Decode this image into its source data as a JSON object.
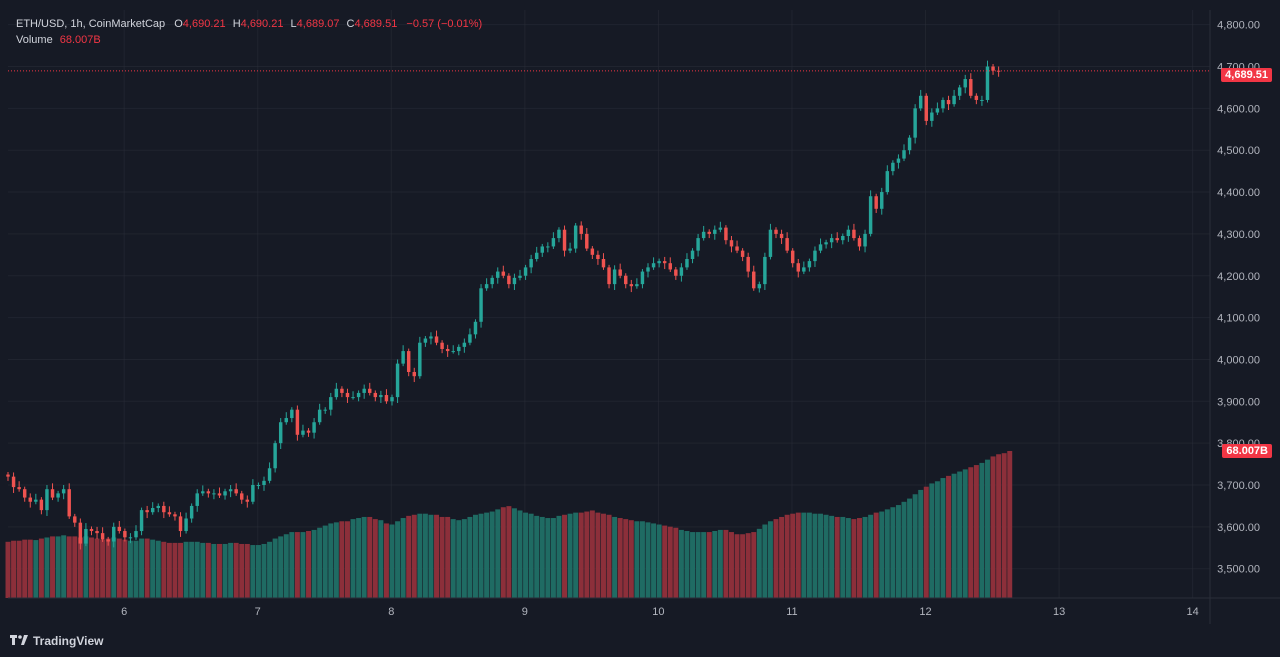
{
  "legend": {
    "symbol": "ETH/USD, 1h, CoinMarketCap",
    "open_label": "O",
    "open": "4,690.21",
    "high_label": "H",
    "high": "4,690.21",
    "low_label": "L",
    "low": "4,689.07",
    "close_label": "C",
    "close": "4,689.51",
    "change": "−0.57 (−0.01%)",
    "volume_label": "Volume",
    "volume": "68.007B"
  },
  "price_tag": "4,689.51",
  "volume_tag": "68.007B",
  "brand": "TradingView",
  "colors": {
    "up": "#26a69a",
    "down": "#ef5350",
    "up_vol": "#1f6b63",
    "down_vol": "#8c2f3a",
    "background": "#161a25",
    "grid": "#2a2e39",
    "text": "#b2b5be",
    "tag": "#f23645"
  },
  "chart_data": {
    "type": "candlestick",
    "title": "ETH/USD, 1h, CoinMarketCap",
    "y_ticks": [
      "3,500.00",
      "3,600.00",
      "3,700.00",
      "3,800.00",
      "3,900.00",
      "4,000.00",
      "4,100.00",
      "4,200.00",
      "4,300.00",
      "4,400.00",
      "4,500.00",
      "4,600.00",
      "4,700.00",
      "4,800.00"
    ],
    "ylim": [
      3430,
      4835
    ],
    "x_ticks": [
      "6",
      "7",
      "8",
      "9",
      "10",
      "11",
      "12",
      "13",
      "14"
    ],
    "x_tick_days": [
      6,
      7,
      8,
      9,
      10,
      11,
      12,
      13,
      14
    ],
    "xlim": [
      5.13,
      14.13
    ],
    "last_price": 4689.51,
    "candle_start_day": 5.13,
    "candle_step_days": 0.04167,
    "series": [
      {
        "name": "ETH/USD",
        "close": [
          3720,
          3695,
          3690,
          3670,
          3660,
          3665,
          3640,
          3690,
          3670,
          3680,
          3690,
          3625,
          3610,
          3560,
          3595,
          3590,
          3585,
          3570,
          3565,
          3600,
          3590,
          3575,
          3575,
          3590,
          3640,
          3635,
          3645,
          3650,
          3635,
          3630,
          3625,
          3590,
          3620,
          3650,
          3680,
          3685,
          3680,
          3680,
          3675,
          3685,
          3690,
          3680,
          3665,
          3660,
          3700,
          3700,
          3710,
          3740,
          3800,
          3850,
          3860,
          3880,
          3820,
          3830,
          3825,
          3850,
          3880,
          3880,
          3910,
          3930,
          3920,
          3910,
          3910,
          3920,
          3930,
          3920,
          3910,
          3915,
          3900,
          3910,
          3990,
          4020,
          3970,
          3960,
          4040,
          4050,
          4055,
          4040,
          4025,
          4020,
          4020,
          4030,
          4040,
          4060,
          4090,
          4170,
          4180,
          4195,
          4210,
          4200,
          4180,
          4195,
          4200,
          4220,
          4240,
          4255,
          4270,
          4270,
          4290,
          4310,
          4260,
          4265,
          4320,
          4300,
          4265,
          4250,
          4240,
          4220,
          4180,
          4215,
          4200,
          4180,
          4175,
          4180,
          4210,
          4220,
          4230,
          4235,
          4230,
          4215,
          4200,
          4220,
          4240,
          4260,
          4290,
          4305,
          4300,
          4310,
          4315,
          4285,
          4270,
          4260,
          4245,
          4210,
          4170,
          4180,
          4245,
          4310,
          4300,
          4290,
          4260,
          4230,
          4210,
          4220,
          4235,
          4260,
          4275,
          4280,
          4290,
          4285,
          4295,
          4310,
          4290,
          4270,
          4300,
          4390,
          4360,
          4400,
          4450,
          4470,
          4480,
          4500,
          4530,
          4600,
          4630,
          4570,
          4590,
          4600,
          4620,
          4610,
          4630,
          4650,
          4670,
          4630,
          4620,
          4620,
          4700,
          4690,
          4689.51
        ]
      },
      {
        "name": "Volume",
        "values": [
          26.0,
          26.5,
          26.5,
          27.0,
          27.0,
          26.8,
          27.5,
          28.0,
          28.5,
          28.5,
          29.0,
          28.5,
          28.5,
          28.0,
          28.5,
          28.0,
          27.5,
          27.0,
          27.5,
          28.0,
          27.5,
          27.0,
          26.5,
          26.5,
          27.5,
          27.5,
          27.0,
          26.5,
          26.0,
          25.5,
          25.5,
          25.5,
          26.0,
          26.0,
          26.0,
          25.5,
          25.5,
          25.0,
          25.0,
          25.0,
          25.5,
          25.5,
          25.0,
          25.0,
          24.5,
          24.5,
          25.0,
          26.0,
          27.5,
          28.5,
          29.5,
          30.5,
          30.5,
          30.5,
          31.0,
          31.5,
          32.5,
          33.5,
          34.5,
          35.0,
          35.5,
          35.5,
          36.5,
          37.0,
          37.5,
          37.5,
          36.5,
          36.0,
          34.5,
          34.0,
          35.5,
          37.0,
          38.0,
          38.5,
          39.0,
          39.0,
          38.5,
          38.5,
          37.5,
          37.5,
          36.5,
          36.0,
          36.5,
          37.5,
          38.5,
          39.0,
          39.5,
          40.0,
          41.0,
          42.0,
          42.5,
          41.5,
          40.5,
          39.5,
          39.0,
          38.0,
          37.5,
          37.0,
          37.0,
          38.0,
          38.5,
          39.0,
          39.5,
          39.5,
          40.0,
          40.5,
          39.5,
          39.0,
          38.5,
          37.5,
          37.0,
          36.5,
          36.0,
          35.5,
          35.5,
          35.0,
          34.5,
          34.0,
          33.5,
          33.0,
          32.5,
          31.5,
          31.0,
          30.5,
          30.5,
          30.5,
          30.5,
          31.0,
          31.5,
          31.5,
          30.5,
          29.5,
          29.5,
          30.0,
          30.5,
          32.0,
          34.0,
          35.5,
          36.5,
          37.5,
          38.5,
          39.0,
          39.5,
          39.5,
          39.5,
          39.0,
          39.0,
          38.5,
          38.0,
          37.5,
          37.5,
          37.0,
          36.5,
          37.0,
          37.5,
          38.5,
          39.5,
          40.0,
          41.0,
          42.0,
          43.0,
          44.5,
          46.0,
          48.0,
          50.0,
          51.5,
          53.0,
          54.0,
          55.5,
          56.5,
          57.5,
          58.5,
          59.5,
          60.5,
          61.5,
          62.5,
          64.0,
          65.5,
          66.5,
          67.0,
          68.007
        ]
      }
    ]
  }
}
